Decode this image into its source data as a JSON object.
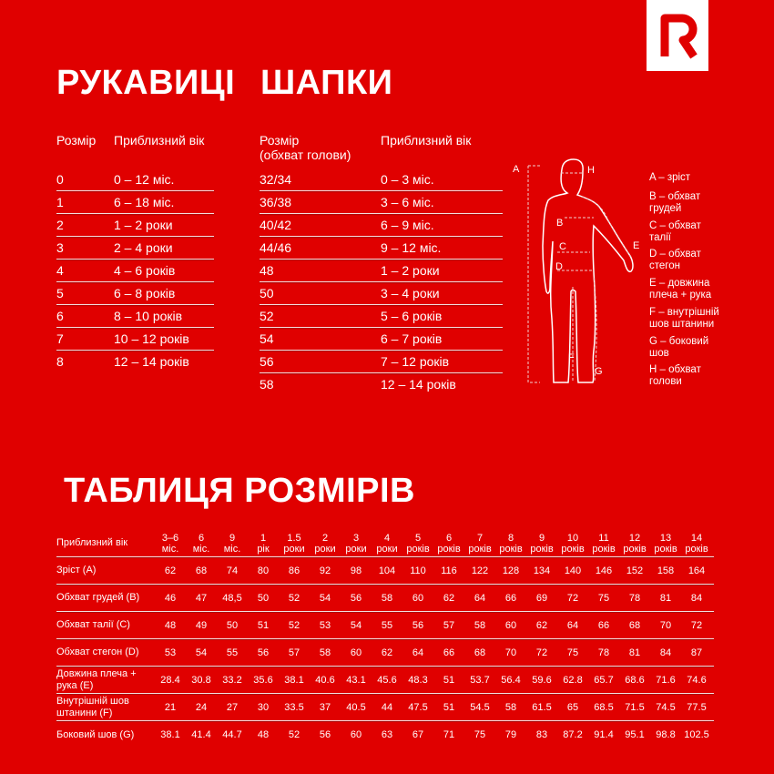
{
  "brand": {
    "logo_letter": "R",
    "bg": "#e00000"
  },
  "gloves": {
    "title": "РУКАВИЦІ",
    "headers": [
      "Розмір",
      "Приблизний вік"
    ],
    "rows": [
      [
        "0",
        "0 – 12 міс."
      ],
      [
        "1",
        "6 – 18 міс."
      ],
      [
        "2",
        "1 – 2 роки"
      ],
      [
        "3",
        "2 – 4 роки"
      ],
      [
        "4",
        "4 – 6 років"
      ],
      [
        "5",
        "6 – 8 років"
      ],
      [
        "6",
        "8 – 10 років"
      ],
      [
        "7",
        "10 – 12 років"
      ],
      [
        "8",
        "12 – 14 років"
      ]
    ]
  },
  "hats": {
    "title": "ШАПКИ",
    "headers": [
      "Розмір",
      "(обхват голови)",
      "Приблизний вік"
    ],
    "rows": [
      [
        "32/34",
        "0 – 3 міс."
      ],
      [
        "36/38",
        "3 – 6 міс."
      ],
      [
        "40/42",
        "6 – 9 міс."
      ],
      [
        "44/46",
        "9 – 12 міс."
      ],
      [
        "48",
        "1 – 2 роки"
      ],
      [
        "50",
        "3 – 4 роки"
      ],
      [
        "52",
        "5 – 6 років"
      ],
      [
        "54",
        "6 – 7 років"
      ],
      [
        "56",
        "7 – 12 років"
      ],
      [
        "58",
        "12 – 14 років"
      ]
    ]
  },
  "figure": {
    "letters": [
      "A",
      "B",
      "C",
      "D",
      "E",
      "F",
      "G",
      "H"
    ],
    "legend": [
      [
        "A – зріст",
        ""
      ],
      [
        "B – обхват",
        "грудей"
      ],
      [
        "C – обхват",
        "талії"
      ],
      [
        "D – обхват",
        "стегон"
      ],
      [
        "E – довжина",
        "плеча + рука"
      ],
      [
        "F – внутрішній",
        "шов штанини"
      ],
      [
        "G – боковий",
        "шов"
      ],
      [
        "H – обхват",
        "голови"
      ]
    ]
  },
  "size_table": {
    "title": "ТАБЛИЦЯ РОЗМІРІВ",
    "header_label": "Приблизний вік",
    "columns": [
      [
        "3–6",
        "міс."
      ],
      [
        "6",
        "міс."
      ],
      [
        "9",
        "міс."
      ],
      [
        "1",
        "рік"
      ],
      [
        "1.5",
        "роки"
      ],
      [
        "2",
        "роки"
      ],
      [
        "3",
        "роки"
      ],
      [
        "4",
        "роки"
      ],
      [
        "5",
        "років"
      ],
      [
        "6",
        "років"
      ],
      [
        "7",
        "років"
      ],
      [
        "8",
        "років"
      ],
      [
        "9",
        "років"
      ],
      [
        "10",
        "років"
      ],
      [
        "11",
        "років"
      ],
      [
        "12",
        "років"
      ],
      [
        "13",
        "років"
      ],
      [
        "14",
        "років"
      ]
    ],
    "rows": [
      {
        "label": "Зріст (A)",
        "values": [
          "62",
          "68",
          "74",
          "80",
          "86",
          "92",
          "98",
          "104",
          "110",
          "116",
          "122",
          "128",
          "134",
          "140",
          "146",
          "152",
          "158",
          "164"
        ]
      },
      {
        "label": "Обхват грудей (B)",
        "values": [
          "46",
          "47",
          "48,5",
          "50",
          "52",
          "54",
          "56",
          "58",
          "60",
          "62",
          "64",
          "66",
          "69",
          "72",
          "75",
          "78",
          "81",
          "84"
        ]
      },
      {
        "label": "Обхват талії (C)",
        "values": [
          "48",
          "49",
          "50",
          "51",
          "52",
          "53",
          "54",
          "55",
          "56",
          "57",
          "58",
          "60",
          "62",
          "64",
          "66",
          "68",
          "70",
          "72"
        ]
      },
      {
        "label": "Обхват стегон (D)",
        "values": [
          "53",
          "54",
          "55",
          "56",
          "57",
          "58",
          "60",
          "62",
          "64",
          "66",
          "68",
          "70",
          "72",
          "75",
          "78",
          "81",
          "84",
          "87"
        ]
      },
      {
        "label": "Довжина плеча + рука (E)",
        "values": [
          "28.4",
          "30.8",
          "33.2",
          "35.6",
          "38.1",
          "40.6",
          "43.1",
          "45.6",
          "48.3",
          "51",
          "53.7",
          "56.4",
          "59.6",
          "62.8",
          "65.7",
          "68.6",
          "71.6",
          "74.6"
        ]
      },
      {
        "label": "Внутрішній шов штанини (F)",
        "values": [
          "21",
          "24",
          "27",
          "30",
          "33.5",
          "37",
          "40.5",
          "44",
          "47.5",
          "51",
          "54.5",
          "58",
          "61.5",
          "65",
          "68.5",
          "71.5",
          "74.5",
          "77.5"
        ]
      },
      {
        "label": "Боковий шов (G)",
        "values": [
          "38.1",
          "41.4",
          "44.7",
          "48",
          "52",
          "56",
          "60",
          "63",
          "67",
          "71",
          "75",
          "79",
          "83",
          "87.2",
          "91.4",
          "95.1",
          "98.8",
          "102.5"
        ]
      }
    ]
  }
}
